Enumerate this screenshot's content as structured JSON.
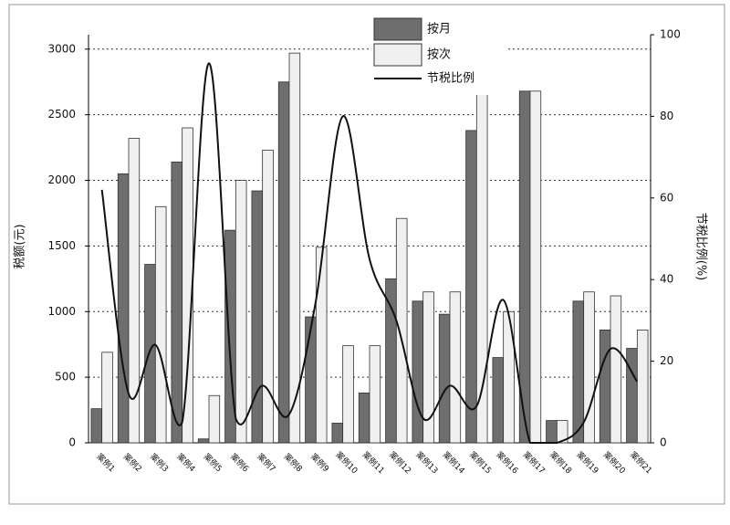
{
  "chart_data": {
    "type": "bar-line",
    "categories": [
      "案例1",
      "案例2",
      "案例3",
      "案例4",
      "案例5",
      "案例6",
      "案例7",
      "案例8",
      "案例9",
      "案例10",
      "案例11",
      "案例12",
      "案例13",
      "案例14",
      "案例15",
      "案例16",
      "案例17",
      "案例18",
      "案例19",
      "案例20",
      "案例21"
    ],
    "series": [
      {
        "name": "按月",
        "color": "#6e6e6e",
        "values": [
          260,
          2050,
          1360,
          2140,
          30,
          1620,
          1920,
          2750,
          960,
          150,
          380,
          1250,
          1080,
          980,
          2380,
          650,
          2680,
          170,
          1080,
          860,
          720
        ]
      },
      {
        "name": "按次",
        "color": "#f0f0f0",
        "values": [
          690,
          2320,
          1800,
          2400,
          360,
          2000,
          2230,
          2970,
          1490,
          740,
          740,
          1710,
          1150,
          1150,
          2660,
          1000,
          2680,
          170,
          1150,
          1120,
          860
        ]
      },
      {
        "name": "节税比例",
        "color": "#111111",
        "axis": "y2",
        "line": true,
        "values": [
          62,
          12,
          24,
          5,
          93,
          6,
          14,
          7,
          35,
          80,
          45,
          30,
          6,
          14,
          9,
          35,
          0,
          0,
          5,
          23,
          15
        ]
      }
    ],
    "ylabel": "税额(元)",
    "y2label": "节税比例(%)",
    "ylim": [
      0,
      3110
    ],
    "yticks": [
      0,
      500,
      1000,
      1500,
      2000,
      2500,
      3000
    ],
    "y2lim": [
      0,
      100
    ],
    "y2ticks": [
      0,
      20,
      40,
      60,
      80,
      100
    ],
    "grid": true,
    "legend": "top"
  }
}
